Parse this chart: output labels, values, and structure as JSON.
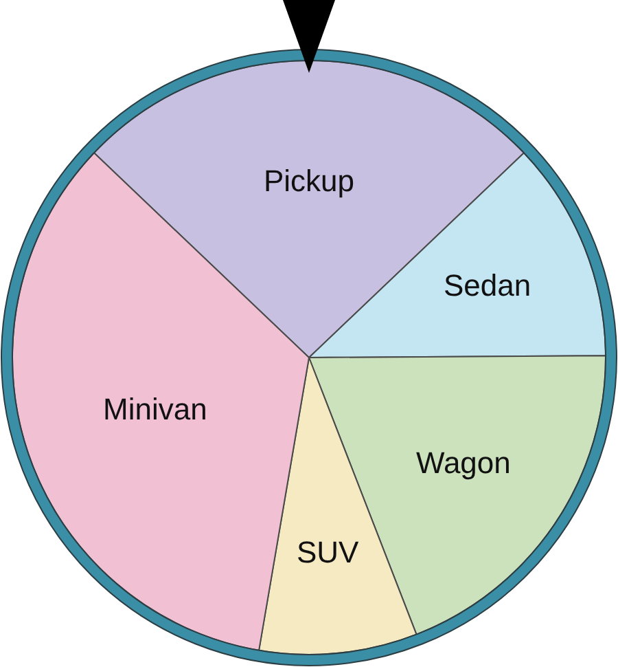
{
  "chart_data": {
    "type": "pie",
    "categories": [
      "Pickup",
      "Sedan",
      "Wagon",
      "SUV",
      "Minivan"
    ],
    "values": [
      25.8,
      12.0,
      19.2,
      8.6,
      34.4
    ],
    "colors": [
      "#c8c0e0",
      "#c4e6f2",
      "#cbe2bd",
      "#f5eac2",
      "#f2c0d3"
    ]
  }
}
